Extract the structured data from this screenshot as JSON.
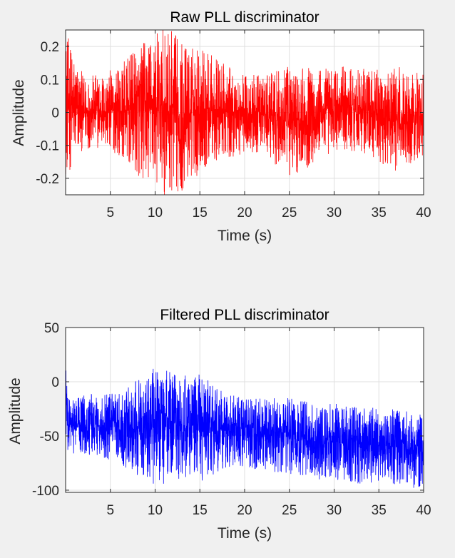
{
  "chart_data": [
    {
      "type": "line",
      "title": "Raw PLL discriminator",
      "xlabel": "Time (s)",
      "ylabel": "Amplitude",
      "xlim": [
        0,
        40
      ],
      "ylim": [
        -0.25,
        0.25
      ],
      "xticks": [
        5,
        10,
        15,
        20,
        25,
        30,
        35,
        40
      ],
      "xtick_labels": [
        "5",
        "10",
        "15",
        "20",
        "25",
        "30",
        "35",
        "40"
      ],
      "yticks": [
        0.2,
        0.1,
        0,
        -0.1,
        -0.2
      ],
      "ytick_labels": [
        "0.2",
        "0.1",
        "0",
        "-0.1",
        "-0.2"
      ],
      "grid": true,
      "series": [
        {
          "name": "raw",
          "color": "#ff0000",
          "envelope_t": [
            0,
            2,
            4,
            6,
            8,
            10,
            11,
            12,
            13,
            14,
            15,
            16,
            17,
            18,
            20,
            22,
            25,
            30,
            33,
            35,
            37,
            40
          ],
          "envelope_max": [
            0.25,
            0.11,
            0.12,
            0.14,
            0.2,
            0.25,
            0.25,
            0.25,
            0.22,
            0.2,
            0.22,
            0.18,
            0.17,
            0.14,
            0.12,
            0.11,
            0.14,
            0.14,
            0.14,
            0.13,
            0.14,
            0.12
          ],
          "envelope_min": [
            -0.2,
            -0.11,
            -0.11,
            -0.13,
            -0.2,
            -0.22,
            -0.25,
            -0.24,
            -0.25,
            -0.2,
            -0.19,
            -0.16,
            -0.15,
            -0.14,
            -0.13,
            -0.12,
            -0.2,
            -0.12,
            -0.12,
            -0.15,
            -0.18,
            -0.13
          ]
        }
      ]
    },
    {
      "type": "line",
      "title": "Filtered PLL discriminator",
      "xlabel": "Time (s)",
      "ylabel": "Amplitude",
      "xlim": [
        0,
        40
      ],
      "ylim": [
        -102,
        50
      ],
      "xticks": [
        5,
        10,
        15,
        20,
        25,
        30,
        35,
        40
      ],
      "xtick_labels": [
        "5",
        "10",
        "15",
        "20",
        "25",
        "30",
        "35",
        "40"
      ],
      "yticks": [
        50,
        0,
        -50,
        -100
      ],
      "ytick_labels": [
        "50",
        "0",
        "-50",
        "-100"
      ],
      "grid": true,
      "series": [
        {
          "name": "filtered",
          "color": "#0000ff",
          "envelope_t": [
            0,
            0.2,
            2,
            4,
            6,
            8,
            10,
            11,
            12,
            13,
            14,
            15,
            16,
            17,
            18,
            20,
            22,
            25,
            28,
            30,
            33,
            35,
            37,
            40
          ],
          "envelope_max": [
            50,
            -15,
            -10,
            -12,
            -10,
            2,
            14,
            14,
            12,
            13,
            5,
            7,
            2,
            -5,
            -10,
            -15,
            -15,
            -15,
            -20,
            -20,
            -22,
            -25,
            -25,
            -30
          ],
          "envelope_min": [
            -50,
            -65,
            -68,
            -70,
            -75,
            -88,
            -95,
            -95,
            -90,
            -95,
            -85,
            -90,
            -95,
            -85,
            -80,
            -80,
            -82,
            -85,
            -90,
            -90,
            -95,
            -92,
            -95,
            -100
          ]
        }
      ]
    }
  ]
}
